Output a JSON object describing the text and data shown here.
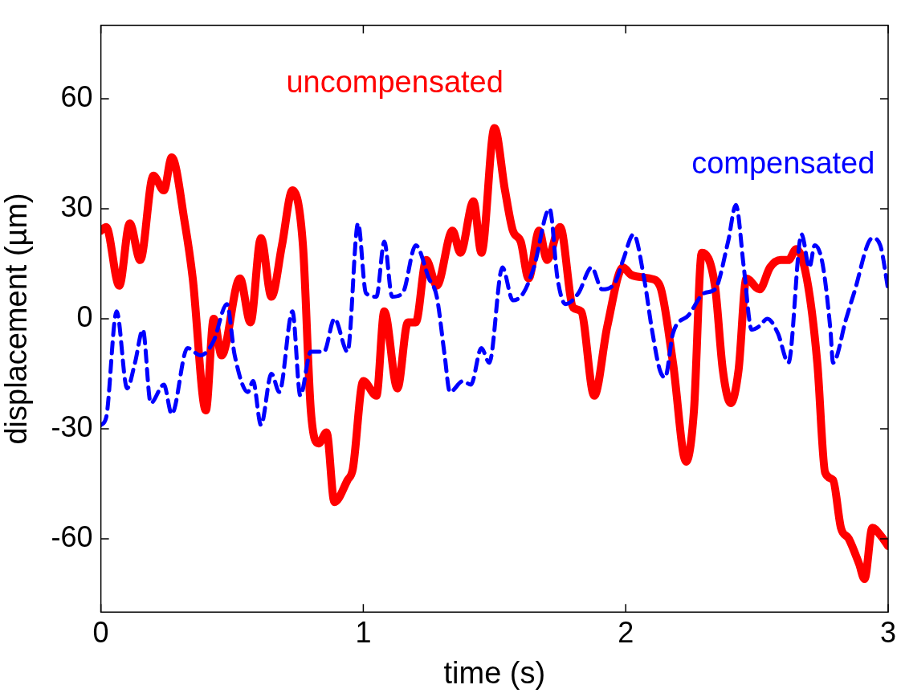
{
  "chart_data": {
    "type": "line",
    "xlabel": "time (s)",
    "ylabel": "displacement (µm)",
    "xlim": [
      0,
      3
    ],
    "xticks": [
      0,
      1,
      2,
      3
    ],
    "ylim": [
      -80,
      80
    ],
    "yticks": [
      -60,
      -30,
      0,
      30,
      60
    ],
    "grid": false,
    "legend": false,
    "marker": "none",
    "series": [
      {
        "name": "uncompensated",
        "color": "#ff0000",
        "line_style": "solid",
        "x": [
          0,
          0.02,
          0.07,
          0.11,
          0.15,
          0.2,
          0.24,
          0.27,
          0.32,
          0.35,
          0.4,
          0.43,
          0.46,
          0.53,
          0.57,
          0.61,
          0.65,
          0.69,
          0.73,
          0.77,
          0.8,
          0.83,
          0.86,
          0.89,
          0.94,
          0.96,
          1,
          1.05,
          1.08,
          1.13,
          1.17,
          1.2,
          1.24,
          1.28,
          1.34,
          1.37,
          1.42,
          1.45,
          1.5,
          1.54,
          1.57,
          1.6,
          1.63,
          1.67,
          1.7,
          1.75,
          1.8,
          1.83,
          1.88,
          1.93,
          1.99,
          2.02,
          2.09,
          2.13,
          2.18,
          2.23,
          2.26,
          2.29,
          2.34,
          2.37,
          2.4,
          2.43,
          2.46,
          2.51,
          2.55,
          2.59,
          2.62,
          2.65,
          2.69,
          2.73,
          2.76,
          2.79,
          2.82,
          2.85,
          2.89,
          2.91,
          2.94,
          2.97,
          3
        ],
        "values": [
          24,
          25,
          9,
          26,
          16,
          39,
          35,
          44,
          26,
          11,
          -25,
          0,
          -10,
          11,
          -1,
          22,
          6,
          20,
          35,
          20,
          -25,
          -34,
          -31,
          -50,
          -44,
          -41,
          -17,
          -21,
          2,
          -19,
          -1,
          -1,
          16,
          9,
          24,
          18,
          32,
          18,
          52,
          35,
          24,
          21,
          11,
          24,
          16,
          25,
          3,
          2,
          -21,
          -2,
          14,
          12,
          11,
          9,
          -12,
          -39,
          -25,
          18,
          9,
          -14,
          -23,
          -14,
          11,
          8,
          14,
          16,
          16,
          19,
          11,
          -12,
          -42,
          -44,
          -57,
          -60,
          -67,
          -71,
          -57,
          -59,
          -62
        ]
      },
      {
        "name": "compensated",
        "color": "#0000ff",
        "line_style": "dashed",
        "x": [
          0,
          0.02,
          0.06,
          0.1,
          0.13,
          0.16,
          0.19,
          0.24,
          0.27,
          0.33,
          0.38,
          0.43,
          0.48,
          0.51,
          0.56,
          0.58,
          0.61,
          0.65,
          0.68,
          0.73,
          0.76,
          0.8,
          0.85,
          0.89,
          0.94,
          0.98,
          1.01,
          1.05,
          1.08,
          1.11,
          1.15,
          1.2,
          1.25,
          1.28,
          1.31,
          1.33,
          1.38,
          1.41,
          1.45,
          1.48,
          1.53,
          1.57,
          1.61,
          1.65,
          1.71,
          1.74,
          1.77,
          1.82,
          1.87,
          1.91,
          1.96,
          1.99,
          2.03,
          2.07,
          2.1,
          2.13,
          2.15,
          2.18,
          2.24,
          2.3,
          2.34,
          2.39,
          2.42,
          2.45,
          2.48,
          2.51,
          2.54,
          2.58,
          2.62,
          2.67,
          2.7,
          2.72,
          2.75,
          2.78,
          2.79,
          2.84,
          2.87,
          2.94,
          2.97,
          3
        ],
        "values": [
          -29,
          -27,
          2,
          -19,
          -12,
          -3,
          -23,
          -18,
          -26,
          -8,
          -10,
          -6,
          4,
          -10,
          -20,
          -17,
          -29,
          -15,
          -20,
          2,
          -21,
          -9,
          -9,
          0,
          -9,
          26,
          7,
          6,
          21,
          6,
          7,
          20,
          11,
          6,
          -10,
          -20,
          -17,
          -18,
          -8,
          -12,
          14,
          5,
          7,
          14,
          30,
          11,
          4,
          7,
          14,
          8,
          10,
          16,
          23,
          11,
          -3,
          -14,
          -16,
          -4,
          1,
          7,
          8,
          21,
          31,
          14,
          -3,
          -2,
          0,
          -4,
          -12,
          23,
          14,
          20,
          15,
          -3,
          -12,
          0,
          7,
          22,
          20,
          8
        ]
      }
    ]
  }
}
